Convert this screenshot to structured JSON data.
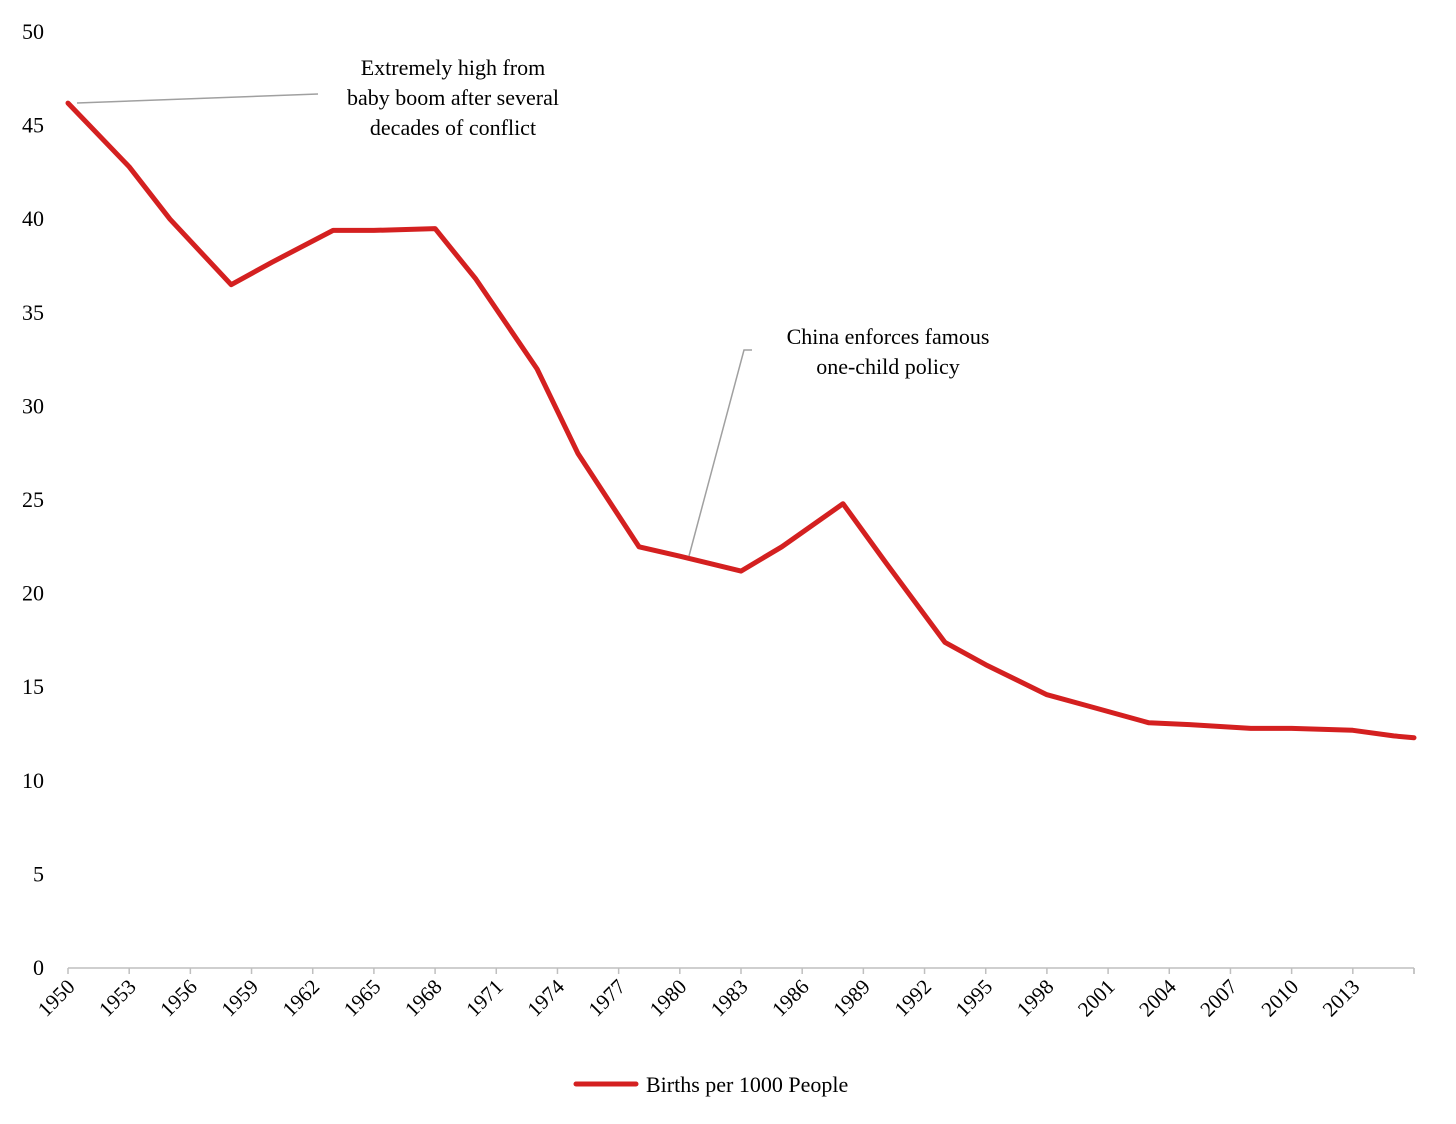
{
  "chart_data": {
    "type": "line",
    "title": "",
    "xlabel": "",
    "ylabel": "",
    "ylim": [
      0,
      50
    ],
    "y_ticks": [
      0,
      5,
      10,
      15,
      20,
      25,
      30,
      35,
      40,
      45,
      50
    ],
    "x_tick_labels": [
      "1950",
      "1953",
      "1956",
      "1959",
      "1962",
      "1965",
      "1968",
      "1971",
      "1974",
      "1977",
      "1980",
      "1983",
      "1986",
      "1989",
      "1992",
      "1995",
      "1998",
      "2001",
      "2004",
      "2007",
      "2010",
      "2013"
    ],
    "xlim": [
      1950,
      2016
    ],
    "grid": false,
    "legend_position": "bottom-center",
    "series": [
      {
        "name": "Births per 1000 People",
        "color": "#d42020",
        "x": [
          1950,
          1953,
          1955,
          1958,
          1960,
          1963,
          1965,
          1968,
          1970,
          1973,
          1975,
          1978,
          1980,
          1983,
          1985,
          1988,
          1990,
          1993,
          1995,
          1998,
          2000,
          2003,
          2005,
          2008,
          2010,
          2013,
          2015,
          2016
        ],
        "values": [
          46.2,
          42.8,
          40.0,
          36.5,
          37.7,
          39.4,
          39.4,
          39.5,
          36.8,
          32.0,
          27.5,
          22.5,
          22.0,
          21.2,
          22.5,
          24.8,
          21.8,
          17.4,
          16.2,
          14.6,
          14.0,
          13.1,
          13.0,
          12.8,
          12.8,
          12.7,
          12.4,
          12.3
        ]
      }
    ],
    "annotations": [
      {
        "lines": [
          "Extremely high from",
          "baby boom after several",
          "decades of conflict"
        ],
        "target_x": 1950,
        "target_y": 46.2
      },
      {
        "lines": [
          "China enforces famous",
          "one-child policy"
        ],
        "target_x": 1980,
        "target_y": 22.0
      }
    ]
  }
}
